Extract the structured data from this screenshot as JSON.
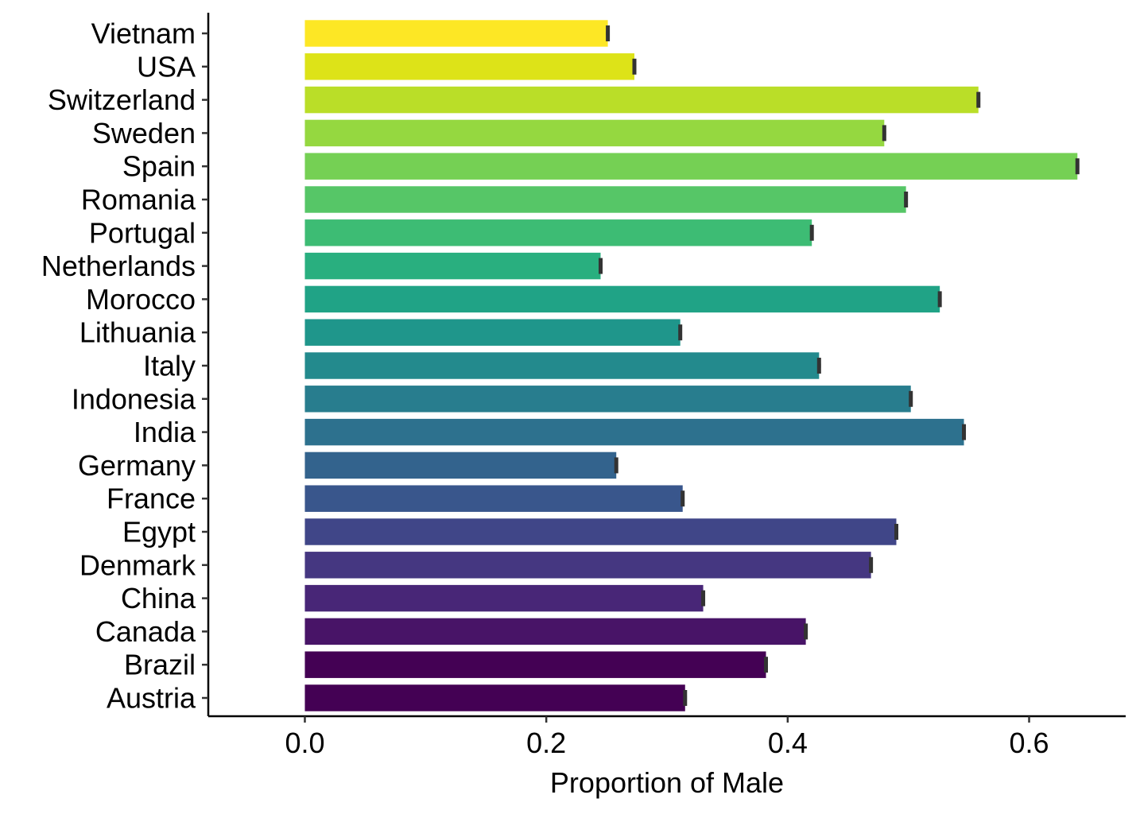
{
  "chart_data": {
    "type": "bar",
    "orientation": "horizontal",
    "title": "",
    "xlabel": "Proportion of Male",
    "ylabel": "",
    "xlim": [
      -0.08,
      0.68
    ],
    "xticks": [
      0.0,
      0.2,
      0.4,
      0.6
    ],
    "xtick_labels": [
      "0.0",
      "0.2",
      "0.4",
      "0.6"
    ],
    "grid": false,
    "legend": "none",
    "categories": [
      "Vietnam",
      "USA",
      "Switzerland",
      "Sweden",
      "Spain",
      "Romania",
      "Portugal",
      "Netherlands",
      "Morocco",
      "Lithuania",
      "Italy",
      "Indonesia",
      "India",
      "Germany",
      "France",
      "Egypt",
      "Denmark",
      "China",
      "Canada",
      "Brazil",
      "Austria"
    ],
    "values": [
      0.251,
      0.273,
      0.558,
      0.48,
      0.64,
      0.498,
      0.42,
      0.245,
      0.526,
      0.311,
      0.426,
      0.502,
      0.546,
      0.258,
      0.313,
      0.49,
      0.469,
      0.33,
      0.415,
      0.382,
      0.315
    ],
    "error": [
      0.0015,
      0.0015,
      0.0015,
      0.0015,
      0.0015,
      0.0015,
      0.0015,
      0.0015,
      0.0015,
      0.0015,
      0.0015,
      0.0015,
      0.0015,
      0.0015,
      0.0015,
      0.0015,
      0.0015,
      0.0015,
      0.0015,
      0.0015,
      0.0015
    ],
    "colors": [
      "#fde725",
      "#dde318",
      "#bade28",
      "#95d840",
      "#75d054",
      "#56c667",
      "#3dbc74",
      "#29af7f",
      "#20a386",
      "#1f968b",
      "#238a8d",
      "#287d8e",
      "#2d718e",
      "#33638d",
      "#39568c",
      "#404688",
      "#453781",
      "#482677",
      "#481467",
      "#440154",
      "#440154"
    ],
    "error_color": "#333333"
  }
}
